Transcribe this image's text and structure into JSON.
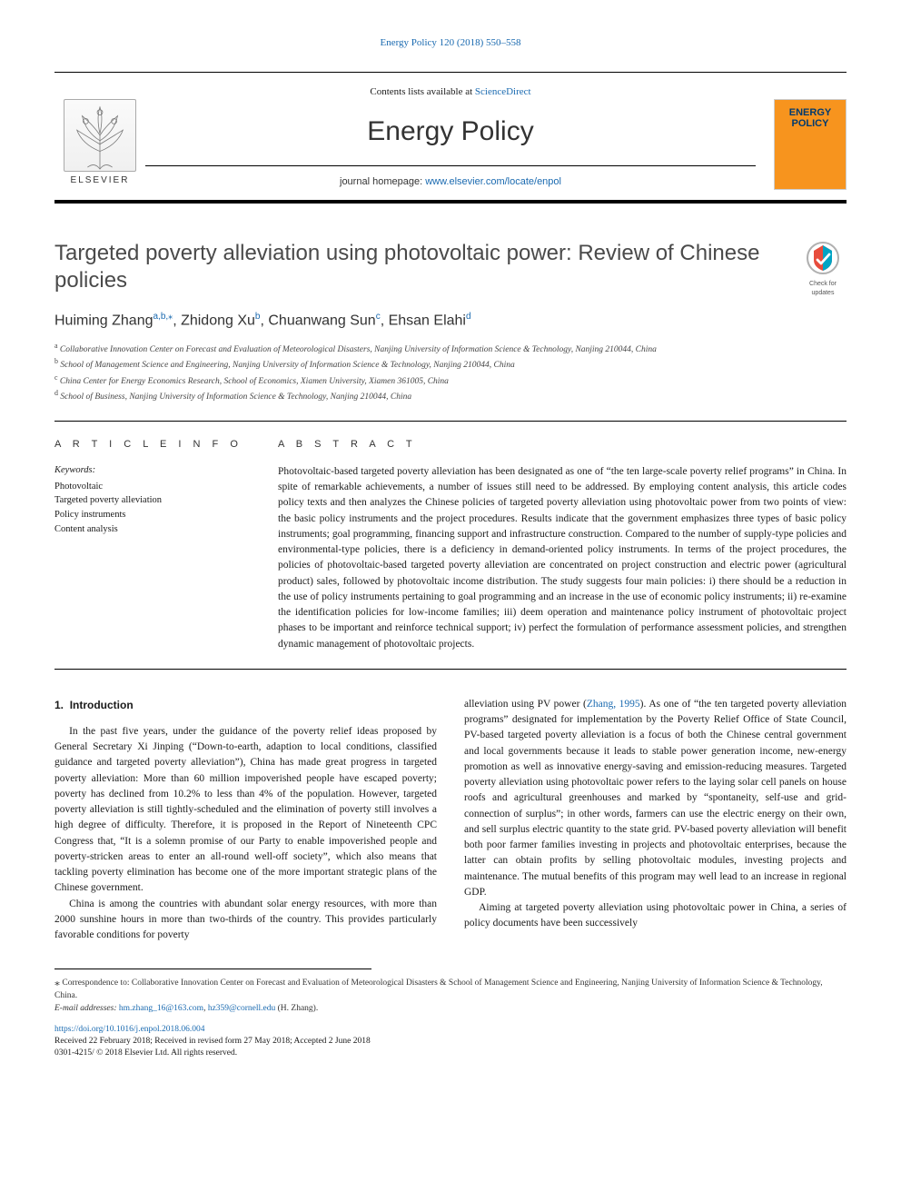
{
  "journal_ref": "Energy Policy 120 (2018) 550–558",
  "header": {
    "contents_prefix": "Contents lists available at ",
    "contents_link": "ScienceDirect",
    "journal_title": "Energy Policy",
    "homepage_label": "journal homepage: ",
    "homepage_url": "www.elsevier.com/locate/enpol",
    "publisher_label": "ELSEVIER",
    "cover_line1": "ENERGY",
    "cover_line2": "POLICY"
  },
  "badge": {
    "line1": "Check for",
    "line2": "updates"
  },
  "article": {
    "title": "Targeted poverty alleviation using photovoltaic power: Review of Chinese policies",
    "authors_html": "Huiming Zhang<sup>a,b,</sup>*<sup></sup>, Zhidong Xu<sup>b</sup>, Chuanwang Sun<sup>c</sup>, Ehsan Elahi<sup>d</sup>",
    "authors": [
      {
        "name": "Huiming Zhang",
        "sup": "a,b,",
        "star": true
      },
      {
        "name": "Zhidong Xu",
        "sup": "b"
      },
      {
        "name": "Chuanwang Sun",
        "sup": "c"
      },
      {
        "name": "Ehsan Elahi",
        "sup": "d"
      }
    ],
    "affiliations": [
      {
        "sup": "a",
        "text": "Collaborative Innovation Center on Forecast and Evaluation of Meteorological Disasters, Nanjing University of Information Science & Technology, Nanjing 210044, China"
      },
      {
        "sup": "b",
        "text": "School of Management Science and Engineering, Nanjing University of Information Science & Technology, Nanjing 210044, China"
      },
      {
        "sup": "c",
        "text": "China Center for Energy Economics Research, School of Economics, Xiamen University, Xiamen 361005, China"
      },
      {
        "sup": "d",
        "text": "School of Business, Nanjing University of Information Science & Technology, Nanjing 210044, China"
      }
    ]
  },
  "info": {
    "heading": "A R T I C L E  I N F O",
    "kw_label": "Keywords:",
    "keywords": [
      "Photovoltaic",
      "Targeted poverty alleviation",
      "Policy instruments",
      "Content analysis"
    ]
  },
  "abstract": {
    "heading": "A B S T R A C T",
    "text": "Photovoltaic-based targeted poverty alleviation has been designated as one of “the ten large-scale poverty relief programs” in China. In spite of remarkable achievements, a number of issues still need to be addressed. By employing content analysis, this article codes policy texts and then analyzes the Chinese policies of targeted poverty alleviation using photovoltaic power from two points of view: the basic policy instruments and the project procedures. Results indicate that the government emphasizes three types of basic policy instruments; goal programming, financing support and infrastructure construction. Compared to the number of supply-type policies and environmental-type policies, there is a deficiency in demand-oriented policy instruments. In terms of the project procedures, the policies of photovoltaic-based targeted poverty alleviation are concentrated on project construction and electric power (agricultural product) sales, followed by photovoltaic income distribution. The study suggests four main policies: i) there should be a reduction in the use of policy instruments pertaining to goal programming and an increase in the use of economic policy instruments; ii) re-examine the identification policies for low-income families; iii) deem operation and maintenance policy instrument of photovoltaic project phases to be important and reinforce technical support; iv) perfect the formulation of performance assessment policies, and strengthen dynamic management of photovoltaic projects."
  },
  "body": {
    "section_number": "1.",
    "section_title": "Introduction",
    "p1": "In the past five years, under the guidance of the poverty relief ideas proposed by General Secretary Xi Jinping (“Down-to-earth, adaption to local conditions, classified guidance and targeted poverty alleviation”), China has made great progress in targeted poverty alleviation: More than 60 million impoverished people have escaped poverty; poverty has declined from 10.2% to less than 4% of the population. However, targeted poverty alleviation is still tightly-scheduled and the elimination of poverty still involves a high degree of difficulty. Therefore, it is proposed in the Report of Nineteenth CPC Congress that, “It is a solemn promise of our Party to enable impoverished people and poverty-stricken areas to enter an all-round well-off society”, which also means that tackling poverty elimination has become one of the more important strategic plans of the Chinese government.",
    "p2": "China is among the countries with abundant solar energy resources, with more than 2000 sunshine hours in more than two-thirds of the country. This provides particularly favorable conditions for poverty",
    "p3_pre": "alleviation using PV power (",
    "p3_cite": "Zhang, 1995",
    "p3_post": "). As one of “the ten targeted poverty alleviation programs” designated for implementation by the Poverty Relief Office of State Council, PV-based targeted poverty alleviation is a focus of both the Chinese central government and local governments because it leads to stable power generation income, new-energy promotion as well as innovative energy-saving and emission-reducing measures. Targeted poverty alleviation using photovoltaic power refers to the laying solar cell panels on house roofs and agricultural greenhouses and marked by “spontaneity, self-use and grid-connection of surplus”; in other words, farmers can use the electric energy on their own, and sell surplus electric quantity to the state grid. PV-based poverty alleviation will benefit both poor farmer families investing in projects and photovoltaic enterprises, because the latter can obtain profits by selling photovoltaic modules, investing projects and maintenance. The mutual benefits of this program may well lead to an increase in regional GDP.",
    "p4": "Aiming at targeted poverty alleviation using photovoltaic power in China, a series of policy documents have been successively"
  },
  "footnotes": {
    "corr_label": "Correspondence to: Collaborative Innovation Center on Forecast and Evaluation of Meteorological Disasters & School of Management Science and Engineering, Nanjing University of Information Science & Technology, China.",
    "email_label": "E-mail addresses:",
    "email1": "hm.zhang_16@163.com",
    "email2": "hz359@cornell.edu",
    "email_person": "(H. Zhang)."
  },
  "doi": {
    "url": "https://doi.org/10.1016/j.enpol.2018.06.004",
    "received": "Received 22 February 2018; Received in revised form 27 May 2018; Accepted 2 June 2018",
    "copyright": "0301-4215/ © 2018 Elsevier Ltd. All rights reserved."
  },
  "colors": {
    "link": "#1a6ab0",
    "cover_bg": "#f7941e",
    "cover_text": "#003a6e",
    "text": "#1a1a1a"
  }
}
